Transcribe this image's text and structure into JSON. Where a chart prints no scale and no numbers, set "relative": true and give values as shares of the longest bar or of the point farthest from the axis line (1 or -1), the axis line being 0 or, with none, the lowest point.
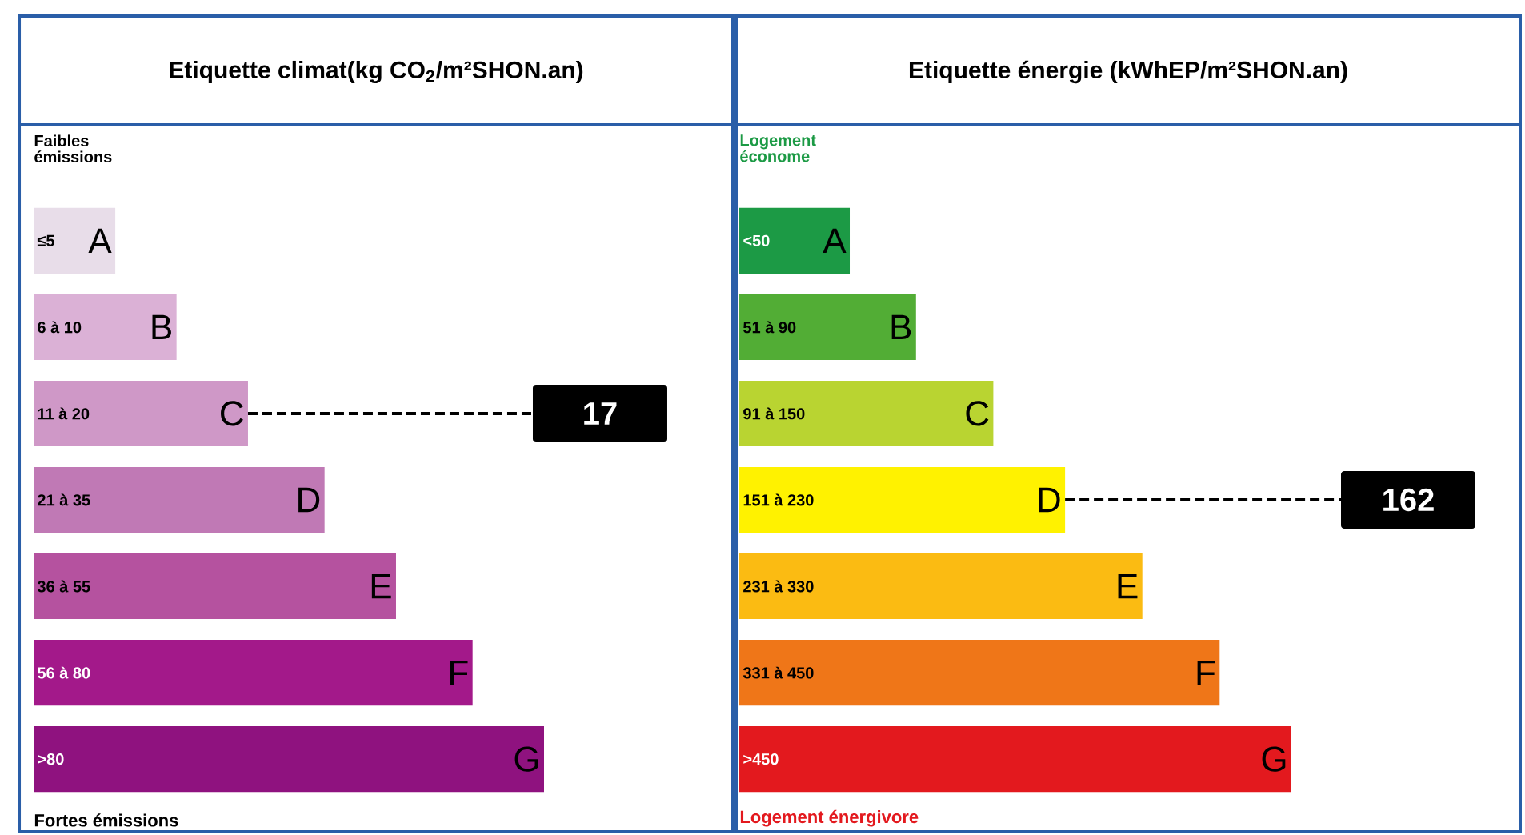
{
  "chart_data": [
    {
      "type": "bar",
      "orientation": "horizontal",
      "relative": true,
      "title": "Etiquette climat(kg CO$_{2}$/m²SHON.an)",
      "categories": [
        "A",
        "B",
        "C",
        "D",
        "E",
        "F",
        "G"
      ],
      "values": [
        0.16,
        0.28,
        0.42,
        0.57,
        0.71,
        0.86,
        1
      ],
      "colors": [
        "#e8dde9",
        "#dbb1d6",
        "#cf98c7",
        "#c079b5",
        "#b5529f",
        "#a3198a",
        "#8f127f"
      ],
      "annotations": [
        "Faibles émissions",
        "Fortes émissions",
        "17",
        "≤5",
        "6 à 10",
        "11 à 20",
        "21 à 35",
        "36 à 55",
        "56 à 80",
        ">80"
      ]
    },
    {
      "type": "bar",
      "orientation": "horizontal",
      "relative": true,
      "title": "Etiquette énergie (kWhEP/m²SHON.an)",
      "categories": [
        "A",
        "B",
        "C",
        "D",
        "E",
        "F",
        "G"
      ],
      "values": [
        0.2,
        0.32,
        0.46,
        0.59,
        0.73,
        0.87,
        1
      ],
      "colors": [
        "#1c9a45",
        "#52ad35",
        "#b9d431",
        "#fff200",
        "#fbbb12",
        "#ef7618",
        "#e3191e"
      ],
      "annotations": [
        "Logement économe",
        "Logement énergivore",
        "162",
        "<50",
        "51 à 90",
        "91 à 150",
        "151 à 230",
        "231 à 330",
        "331 à 450",
        ">450"
      ]
    }
  ]
}
